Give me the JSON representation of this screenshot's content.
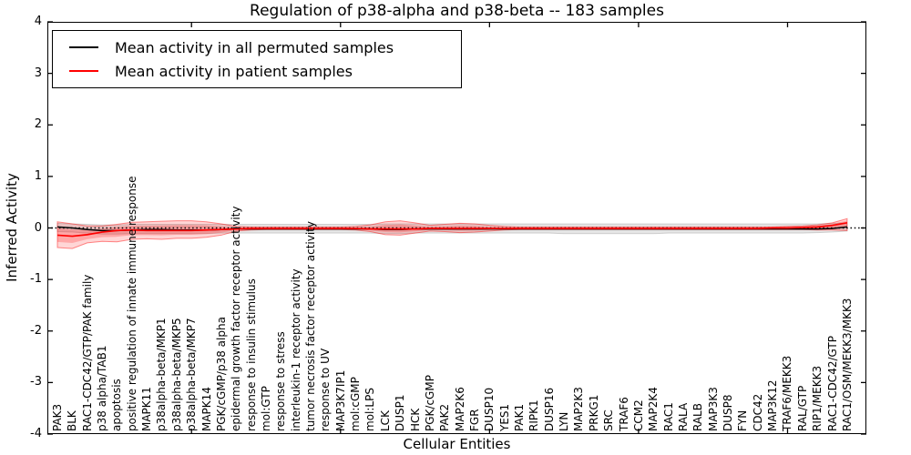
{
  "chart_data": {
    "type": "line",
    "title": "Regulation of p38-alpha and p38-beta -- 183 samples",
    "xlabel": "Cellular Entities",
    "ylabel": "Inferred Activity",
    "ylim": [
      -4,
      4
    ],
    "yticks": [
      4,
      3,
      2,
      1,
      0,
      -1,
      -2,
      -3,
      -4
    ],
    "xtick_marks": [
      10,
      20,
      30,
      40,
      50
    ],
    "grid": false,
    "zero_line": true,
    "legend_position": "upper left",
    "categories": [
      "PAK3",
      "BLK",
      "RAC1-CDC42/GTP/PAK family",
      "p38 alpha/TAB1",
      "apoptosis",
      "positive regulation of innate immune response",
      "MAPK11",
      "p38alpha-beta/MKP1",
      "p38alpha-beta/MKP5",
      "p38alpha-beta/MKP7",
      "MAPK14",
      "PGK/cGMP/p38 alpha",
      "epidermal growth factor receptor activity",
      "response to insulin stimulus",
      "mol:GTP",
      "response to stress",
      "interleukin-1 receptor activity",
      "tumor necrosis factor receptor activity",
      "response to UV",
      "MAP3K7IP1",
      "mol:cGMP",
      "mol:LPS",
      "LCK",
      "DUSP1",
      "HCK",
      "PGK/cGMP",
      "PAK2",
      "MAP2K6",
      "FGR",
      "DUSP10",
      "YES1",
      "PAK1",
      "RIPK1",
      "DUSP16",
      "LYN",
      "MAP2K3",
      "PRKG1",
      "SRC",
      "TRAF6",
      "CCM2",
      "MAP2K4",
      "RAC1",
      "RALA",
      "RALB",
      "MAP3K3",
      "DUSP8",
      "FYN",
      "CDC42",
      "MAP3K12",
      "TRAF6/MEKK3",
      "RAL/GTP",
      "RIP1/MEKK3",
      "RAC1-CDC42/GTP",
      "RAC1/OSM/MEKK3/MKK3"
    ],
    "series": [
      {
        "name": "Mean activity in all permuted samples",
        "color": "#000000",
        "values": [
          0.02,
          0.0,
          -0.03,
          -0.05,
          -0.05,
          -0.04,
          -0.03,
          -0.03,
          -0.04,
          -0.04,
          -0.04,
          -0.03,
          -0.02,
          -0.02,
          -0.02,
          -0.02,
          -0.02,
          -0.02,
          -0.02,
          -0.02,
          -0.02,
          -0.02,
          -0.03,
          -0.03,
          -0.02,
          -0.02,
          -0.02,
          -0.02,
          -0.02,
          -0.02,
          -0.02,
          -0.02,
          -0.02,
          -0.02,
          -0.02,
          -0.02,
          -0.02,
          -0.02,
          -0.02,
          -0.02,
          -0.02,
          -0.02,
          -0.02,
          -0.02,
          -0.02,
          -0.02,
          -0.02,
          -0.02,
          -0.02,
          -0.02,
          -0.02,
          -0.02,
          -0.01,
          0.02
        ]
      },
      {
        "name": "Mean activity in patient samples",
        "color": "#ff0000",
        "values": [
          -0.14,
          -0.16,
          -0.13,
          -0.08,
          -0.05,
          -0.04,
          -0.05,
          -0.05,
          -0.05,
          -0.05,
          -0.04,
          -0.03,
          -0.02,
          -0.01,
          -0.01,
          -0.01,
          -0.01,
          -0.01,
          -0.01,
          -0.01,
          -0.01,
          -0.02,
          -0.02,
          -0.02,
          -0.02,
          -0.01,
          -0.01,
          -0.01,
          -0.01,
          -0.01,
          -0.01,
          -0.01,
          -0.01,
          -0.01,
          -0.01,
          -0.01,
          -0.01,
          -0.01,
          -0.01,
          -0.01,
          -0.01,
          -0.01,
          -0.01,
          -0.01,
          -0.01,
          -0.01,
          -0.01,
          -0.01,
          0.0,
          0.0,
          0.01,
          0.02,
          0.05,
          0.1
        ]
      }
    ],
    "bands": [
      {
        "name": "permuted-samples-range",
        "fill": "rgba(0,0,0,0.10)",
        "edge": "rgba(0,0,0,0.15)",
        "upper": [
          0.09,
          0.08,
          0.07,
          0.06,
          0.06,
          0.07,
          0.07,
          0.07,
          0.07,
          0.07,
          0.07,
          0.07,
          0.07,
          0.07,
          0.07,
          0.07,
          0.07,
          0.07,
          0.07,
          0.07,
          0.07,
          0.07,
          0.08,
          0.08,
          0.08,
          0.08,
          0.08,
          0.08,
          0.08,
          0.08,
          0.08,
          0.08,
          0.08,
          0.08,
          0.08,
          0.08,
          0.08,
          0.08,
          0.08,
          0.08,
          0.08,
          0.08,
          0.08,
          0.08,
          0.08,
          0.08,
          0.08,
          0.08,
          0.08,
          0.08,
          0.08,
          0.08,
          0.09,
          0.1
        ],
        "lower": [
          -0.07,
          -0.08,
          -0.1,
          -0.12,
          -0.12,
          -0.11,
          -0.11,
          -0.11,
          -0.11,
          -0.11,
          -0.11,
          -0.1,
          -0.1,
          -0.1,
          -0.1,
          -0.1,
          -0.1,
          -0.1,
          -0.1,
          -0.1,
          -0.1,
          -0.1,
          -0.11,
          -0.11,
          -0.1,
          -0.1,
          -0.1,
          -0.1,
          -0.1,
          -0.1,
          -0.1,
          -0.1,
          -0.1,
          -0.1,
          -0.11,
          -0.11,
          -0.11,
          -0.11,
          -0.11,
          -0.11,
          -0.11,
          -0.1,
          -0.1,
          -0.1,
          -0.1,
          -0.1,
          -0.1,
          -0.1,
          -0.1,
          -0.1,
          -0.1,
          -0.09,
          -0.08,
          -0.06
        ]
      },
      {
        "name": "patient-samples-range",
        "fill": "rgba(255,0,0,0.16)",
        "edge": "rgba(255,0,0,0.45)",
        "inner_fill": "rgba(255,0,0,0.22)",
        "upper": [
          0.12,
          0.08,
          0.04,
          0.04,
          0.07,
          0.11,
          0.12,
          0.13,
          0.14,
          0.14,
          0.12,
          0.08,
          0.03,
          0.02,
          0.02,
          0.02,
          0.02,
          0.02,
          0.02,
          0.02,
          0.03,
          0.06,
          0.12,
          0.14,
          0.1,
          0.05,
          0.07,
          0.09,
          0.08,
          0.05,
          0.03,
          0.02,
          0.02,
          0.02,
          0.02,
          0.02,
          0.02,
          0.02,
          0.02,
          0.02,
          0.02,
          0.02,
          0.02,
          0.02,
          0.02,
          0.02,
          0.02,
          0.02,
          0.02,
          0.03,
          0.04,
          0.06,
          0.1,
          0.18
        ],
        "lower": [
          -0.38,
          -0.4,
          -0.29,
          -0.26,
          -0.27,
          -0.22,
          -0.21,
          -0.22,
          -0.2,
          -0.2,
          -0.18,
          -0.14,
          -0.06,
          -0.04,
          -0.03,
          -0.03,
          -0.03,
          -0.03,
          -0.03,
          -0.03,
          -0.04,
          -0.07,
          -0.13,
          -0.14,
          -0.1,
          -0.06,
          -0.07,
          -0.09,
          -0.08,
          -0.06,
          -0.04,
          -0.03,
          -0.03,
          -0.03,
          -0.03,
          -0.03,
          -0.03,
          -0.03,
          -0.03,
          -0.03,
          -0.03,
          -0.03,
          -0.03,
          -0.03,
          -0.03,
          -0.03,
          -0.03,
          -0.03,
          -0.03,
          -0.03,
          -0.03,
          -0.04,
          -0.04,
          -0.05
        ]
      }
    ],
    "colors": {
      "background": "#ffffff",
      "axis": "#000000",
      "permuted_line": "#000000",
      "patient_line": "#ff0000"
    }
  }
}
